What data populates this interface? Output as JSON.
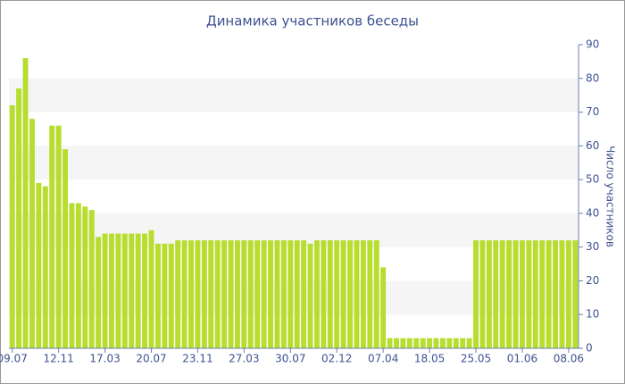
{
  "chart_data": {
    "type": "bar",
    "title": "Динамика участников беседы",
    "y_label": "Число участников",
    "categories": [
      "09.07",
      null,
      null,
      null,
      null,
      null,
      null,
      "12.11",
      null,
      null,
      null,
      null,
      null,
      null,
      "17.03",
      null,
      null,
      null,
      null,
      null,
      null,
      "20.07",
      null,
      null,
      null,
      null,
      null,
      null,
      "23.11",
      null,
      null,
      null,
      null,
      null,
      null,
      "27.03",
      null,
      null,
      null,
      null,
      null,
      null,
      "30.07",
      null,
      null,
      null,
      null,
      null,
      null,
      "02.12",
      null,
      null,
      null,
      null,
      null,
      null,
      "07.04",
      null,
      null,
      null,
      null,
      null,
      null,
      "18.05",
      null,
      null,
      null,
      null,
      null,
      null,
      "25.05",
      null,
      null,
      null,
      null,
      null,
      null,
      "01.06",
      null,
      null,
      null,
      null,
      null,
      null,
      "08.06",
      null
    ],
    "values": [
      72,
      77,
      86,
      68,
      49,
      48,
      66,
      66,
      59,
      43,
      43,
      42,
      41,
      33,
      34,
      34,
      34,
      34,
      34,
      34,
      34,
      35,
      31,
      31,
      31,
      32,
      32,
      32,
      32,
      32,
      32,
      32,
      32,
      32,
      32,
      32,
      32,
      32,
      32,
      32,
      32,
      32,
      32,
      32,
      32,
      31,
      32,
      32,
      32,
      32,
      32,
      32,
      32,
      32,
      32,
      32,
      24,
      3,
      3,
      3,
      3,
      3,
      3,
      3,
      3,
      3,
      3,
      3,
      3,
      3,
      32,
      32,
      32,
      32,
      32,
      32,
      32,
      32,
      32,
      32,
      32,
      32,
      32,
      32,
      32,
      32
    ],
    "color": "#b7dd2f",
    "ylim": [
      0,
      90
    ],
    "yticks": [
      0,
      10,
      20,
      30,
      40,
      50,
      60,
      70,
      80,
      90
    ],
    "y_axis_side": "right",
    "bands": true
  }
}
